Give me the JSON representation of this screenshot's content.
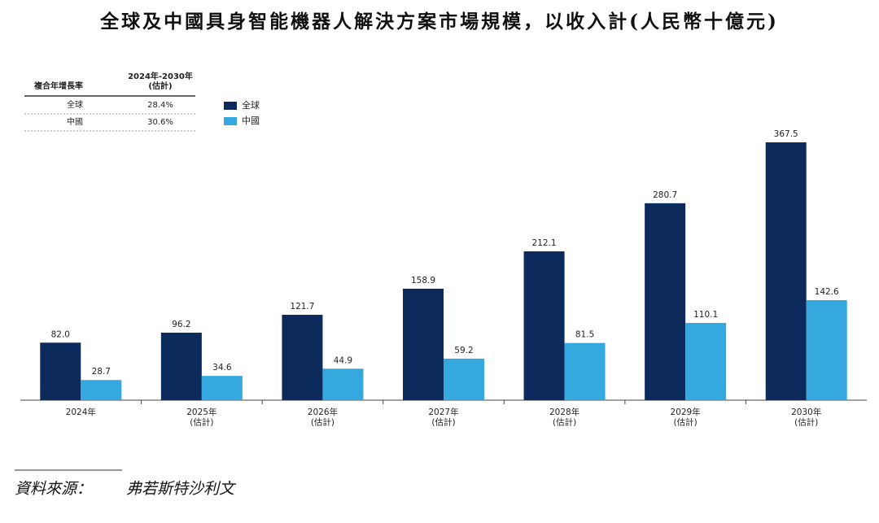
{
  "chart_data": {
    "type": "bar",
    "title": "全球及中國具身智能機器人解決方案市場規模，以收入計(人民幣十億元)",
    "categories": [
      "2024年",
      "2025年\n(估計)",
      "2026年\n(估計)",
      "2027年\n(估計)",
      "2028年\n(估計)",
      "2029年\n(估計)",
      "2030年\n(估計)"
    ],
    "series": [
      {
        "name": "全球",
        "color": "#0c2a5b",
        "values": [
          82.0,
          96.2,
          121.7,
          158.9,
          212.1,
          280.7,
          367.5
        ],
        "value_labels": [
          "82.0",
          "96.2",
          "121.7",
          "158.9",
          "212.1",
          "280.7",
          "367.5"
        ]
      },
      {
        "name": "中國",
        "color": "#35a8e0",
        "values": [
          28.7,
          34.6,
          44.9,
          59.2,
          81.5,
          110.1,
          142.6
        ],
        "value_labels": [
          "28.7",
          "34.6",
          "44.9",
          "59.2",
          "81.5",
          "110.1",
          "142.6"
        ]
      }
    ],
    "legend": "top-left",
    "cagr_table": {
      "header": [
        "複合年增長率",
        "2024年-2030年\n(估計)"
      ],
      "rows": [
        [
          "全球",
          "28.4%"
        ],
        [
          "中國",
          "30.6%"
        ]
      ]
    },
    "source": {
      "label": "資料來源：",
      "value": "弗若斯特沙利文"
    }
  }
}
